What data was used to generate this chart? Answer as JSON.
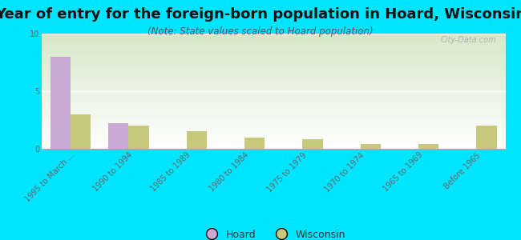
{
  "title": "Year of entry for the foreign-born population in Hoard, Wisconsin",
  "subtitle": "(Note: State values scaled to Hoard population)",
  "categories": [
    "1995 to March ...",
    "1990 to 1994",
    "1985 to 1989",
    "1980 to 1984",
    "1975 to 1979",
    "1970 to 1974",
    "1965 to 1969",
    "Before 1965"
  ],
  "hoard_values": [
    8.0,
    2.2,
    0,
    0,
    0,
    0,
    0,
    0
  ],
  "wisconsin_values": [
    3.0,
    2.0,
    1.5,
    1.0,
    0.8,
    0.4,
    0.4,
    2.0
  ],
  "hoard_color": "#c9a8d4",
  "wisconsin_color": "#c8c87a",
  "background_color": "#00e5ff",
  "grad_top_left": "#d6e8c8",
  "grad_bottom_right": "#ffffff",
  "ylim": [
    0,
    10
  ],
  "yticks": [
    0,
    5,
    10
  ],
  "bar_width": 0.35,
  "title_fontsize": 13,
  "subtitle_fontsize": 8.5,
  "tick_fontsize": 7,
  "watermark": "City-Data.com",
  "legend_labels": [
    "Hoard",
    "Wisconsin"
  ]
}
